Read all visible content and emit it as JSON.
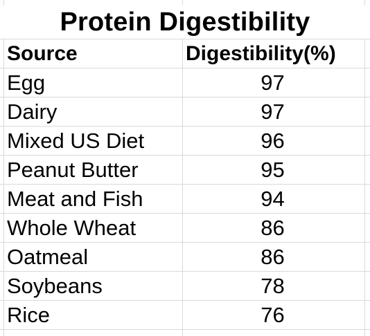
{
  "title": "Protein Digestibility",
  "columns": {
    "source": "Source",
    "digestibility": "Digestibility(%)"
  },
  "rows": [
    {
      "source": "Egg",
      "value": "97"
    },
    {
      "source": "Dairy",
      "value": "97"
    },
    {
      "source": "Mixed US Diet",
      "value": "96"
    },
    {
      "source": "Peanut Butter",
      "value": "95"
    },
    {
      "source": "Meat and Fish",
      "value": "94"
    },
    {
      "source": "Whole Wheat",
      "value": "86"
    },
    {
      "source": "Oatmeal",
      "value": "86"
    },
    {
      "source": "Soybeans",
      "value": "78"
    },
    {
      "source": "Rice",
      "value": "76"
    }
  ]
}
